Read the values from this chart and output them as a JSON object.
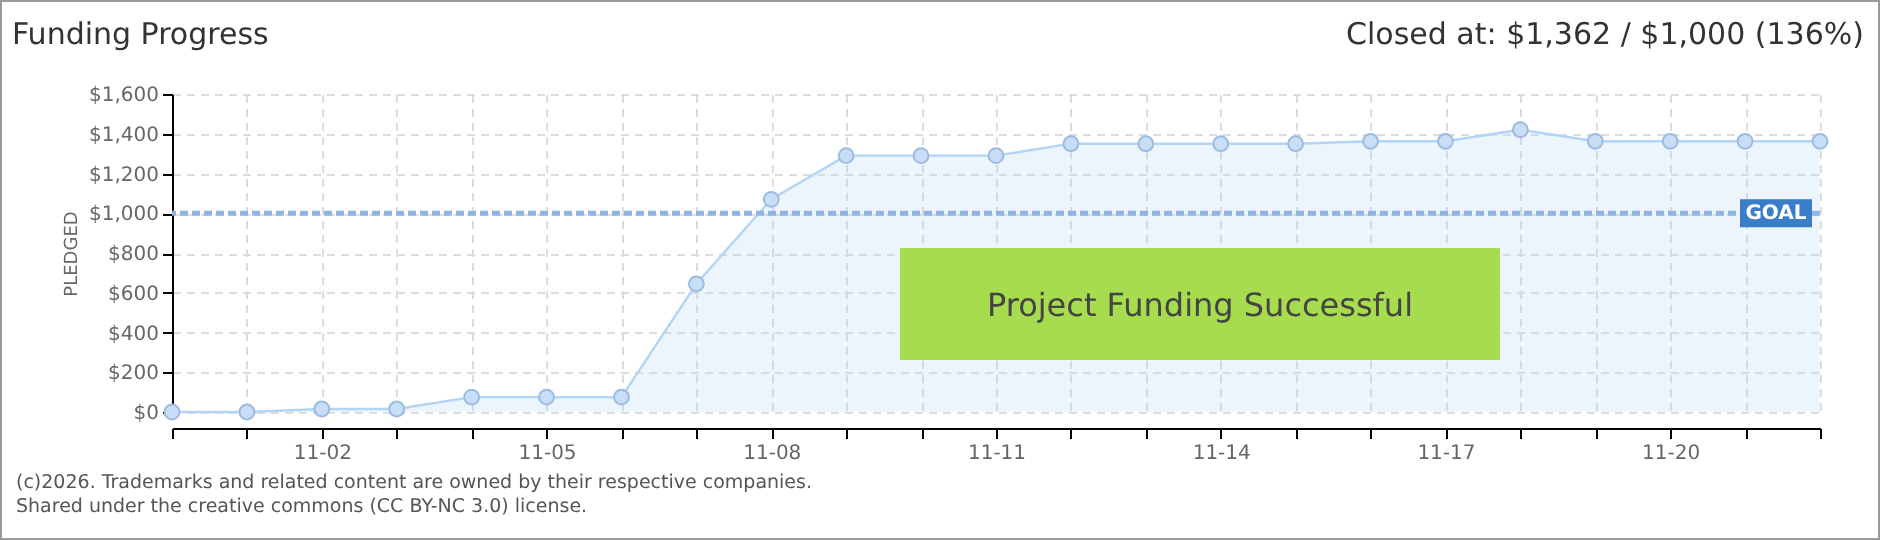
{
  "chart_data": {
    "type": "area",
    "title": "Funding Progress",
    "subtitle": "Closed at: $1,362 / $1,000 (136%)",
    "ylabel": "PLEDGED",
    "x": [
      "--10-31",
      "--11-01",
      "--11-02",
      "--11-03",
      "--11-04",
      "--11-05",
      "--11-06",
      "--11-07",
      "--11-08",
      "--11-09",
      "--11-10",
      "--11-11",
      "--11-12",
      "--11-13",
      "--11-14",
      "--11-15",
      "--11-16",
      "--11-17",
      "--11-18",
      "--11-19",
      "--11-20",
      "--11-21",
      "--11-22"
    ],
    "series": [
      {
        "color": "#b3d4f5",
        "values": [
          0,
          0,
          15,
          15,
          75,
          75,
          75,
          645,
          1070,
          1290,
          1290,
          1290,
          1350,
          1350,
          1350,
          1350,
          1362,
          1362,
          1420,
          1362,
          1362,
          1362,
          1362
        ]
      }
    ],
    "xlim": [
      "--10-31",
      "--11-22"
    ],
    "xticks": [
      {
        "value": "--10-31",
        "label": null
      },
      {
        "value": "--11-01",
        "label": null
      },
      {
        "value": "--11-02",
        "label": "11-02"
      },
      {
        "value": "--11-03",
        "label": null
      },
      {
        "value": "--11-04",
        "label": null
      },
      {
        "value": "--11-05",
        "label": "11-05"
      },
      {
        "value": "--11-06",
        "label": null
      },
      {
        "value": "--11-07",
        "label": null
      },
      {
        "value": "--11-08",
        "label": "11-08"
      },
      {
        "value": "--11-09",
        "label": null
      },
      {
        "value": "--11-10",
        "label": null
      },
      {
        "value": "--11-11",
        "label": "11-11"
      },
      {
        "value": "--11-12",
        "label": null
      },
      {
        "value": "--11-13",
        "label": null
      },
      {
        "value": "--11-14",
        "label": "11-14"
      },
      {
        "value": "--11-15",
        "label": null
      },
      {
        "value": "--11-16",
        "label": null
      },
      {
        "value": "--11-17",
        "label": "11-17"
      },
      {
        "value": "--11-18",
        "label": null
      },
      {
        "value": "--11-19",
        "label": null
      },
      {
        "value": "--11-20",
        "label": "11-20"
      },
      {
        "value": "--11-21",
        "label": null
      },
      {
        "value": "--11-22",
        "label": null
      }
    ],
    "ylim": [
      0,
      1600
    ],
    "yticks": [
      {
        "value": 0,
        "label": "$0"
      },
      {
        "value": 200,
        "label": "$200"
      },
      {
        "value": 400,
        "label": "$400"
      },
      {
        "value": 600,
        "label": "$600"
      },
      {
        "value": 800,
        "label": "$800"
      },
      {
        "value": 1000,
        "label": "$1,000"
      },
      {
        "value": 1200,
        "label": "$1,200"
      },
      {
        "value": 1400,
        "label": "$1,400"
      },
      {
        "value": 1600,
        "label": "$1,600"
      }
    ],
    "ref_lines": [
      {
        "axis": "y",
        "value": 1000,
        "label": "GOAL",
        "color": "#8fb4e3",
        "line_style": "dashed"
      }
    ],
    "grid": true,
    "marker": "circle",
    "annotations": [
      "Project Funding Successful",
      "(c)2026. Trademarks and related content are owned by their respective companies.",
      "Shared under the creative commons (CC BY-NC 3.0) license."
    ]
  }
}
